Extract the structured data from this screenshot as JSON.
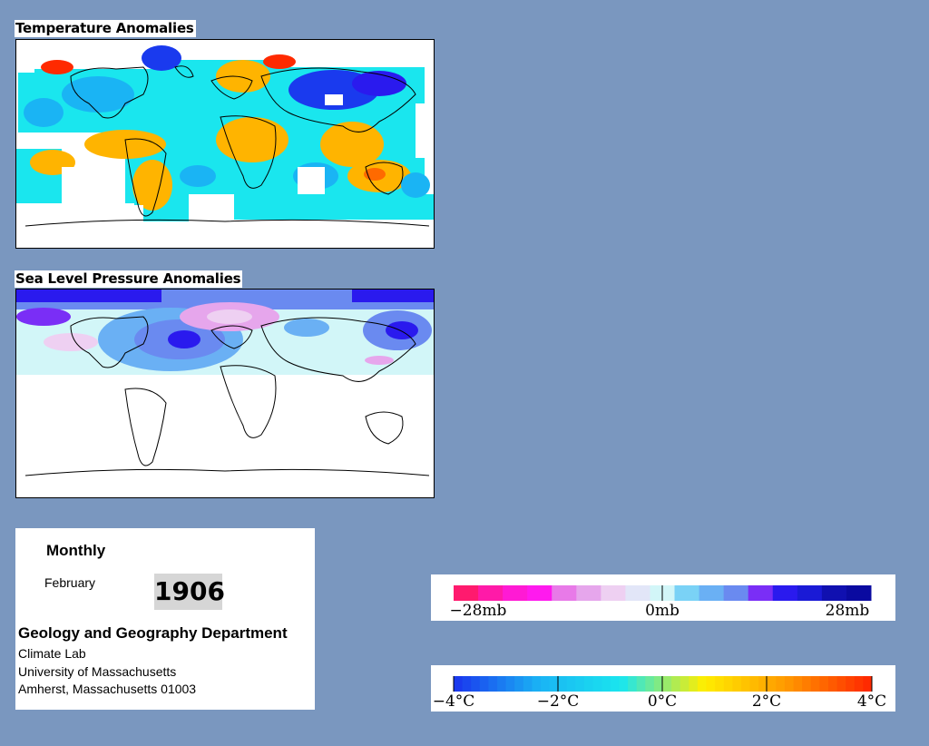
{
  "temperature_panel": {
    "title": "Temperature Anomalies"
  },
  "pressure_panel": {
    "title": "Sea Level Pressure Anomalies"
  },
  "info": {
    "period": "Monthly",
    "month": "February",
    "year": "1906",
    "department": "Geology and Geography Department",
    "address_lines": [
      "Climate Lab",
      "University of Massachusetts",
      "Amherst, Massachusetts 01003"
    ]
  },
  "pressure_legend": {
    "labels": [
      "−28mb",
      "0mb",
      "28mb"
    ],
    "colors": [
      "#ff1a6e",
      "#ff1aa8",
      "#ff1ad4",
      "#ff1aee",
      "#e87ae8",
      "#e6a6ec",
      "#eed0f2",
      "#e2e6f8",
      "#d2f6f8",
      "#7ad2f6",
      "#6ab0f4",
      "#6a8af0",
      "#7a2ef6",
      "#2a1aee",
      "#1a1ad6",
      "#1010b0",
      "#0a0aa0"
    ]
  },
  "temperature_legend": {
    "labels": [
      "−4°C",
      "−2°C",
      "0°C",
      "2°C",
      "4°C"
    ],
    "colors": [
      "#1a3aee",
      "#1ab4f4",
      "#1ae6ee",
      "#ffee00",
      "#ff9a00",
      "#ff2a00"
    ]
  }
}
